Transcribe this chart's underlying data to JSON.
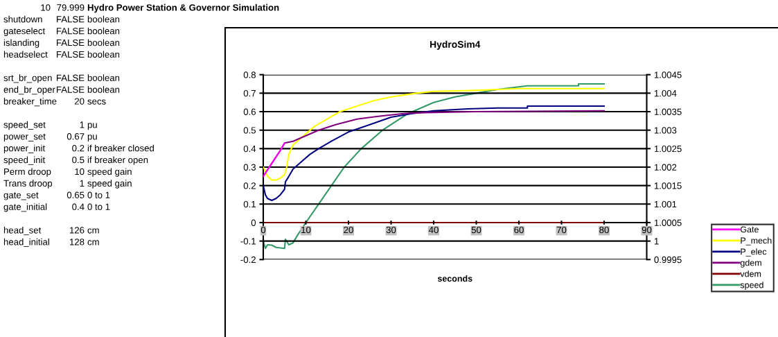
{
  "chart_data": {
    "type": "line",
    "title": "HydroSim4",
    "xlabel": "seconds",
    "xlim": [
      0,
      90
    ],
    "xticks": [
      0,
      10,
      20,
      30,
      40,
      50,
      60,
      70,
      80,
      90
    ],
    "ylim": [
      -0.2,
      0.8
    ],
    "yticks": [
      -0.2,
      -0.1,
      0,
      0.1,
      0.2,
      0.3,
      0.4,
      0.5,
      0.6,
      0.7,
      0.8
    ],
    "y2lim": [
      0.9995,
      1.0045
    ],
    "y2ticks": [
      0.9995,
      1,
      1.0005,
      1.001,
      1.0015,
      1.002,
      1.0025,
      1.003,
      1.0035,
      1.004,
      1.0045
    ],
    "grid": "y",
    "legend": "right",
    "marker": "none",
    "line_style": "solid",
    "series": [
      {
        "name": "Gate",
        "color": "#ff00ff",
        "x": [
          0,
          2,
          4,
          5
        ],
        "values": [
          0.25,
          0.32,
          0.39,
          0.43
        ]
      },
      {
        "name": "P_mech",
        "color": "#ffff00",
        "x": [
          0,
          0.5,
          1,
          2,
          3,
          4,
          5,
          5.5,
          6,
          7,
          8,
          10,
          12,
          15,
          18,
          22,
          26,
          30,
          36,
          40,
          50,
          55,
          60,
          80
        ],
        "values": [
          0.3,
          0.28,
          0.25,
          0.23,
          0.23,
          0.24,
          0.26,
          0.3,
          0.37,
          0.42,
          0.44,
          0.48,
          0.52,
          0.56,
          0.6,
          0.63,
          0.66,
          0.68,
          0.7,
          0.71,
          0.715,
          0.72,
          0.725,
          0.725
        ]
      },
      {
        "name": "P_elec",
        "color": "#000080",
        "x": [
          0,
          0.5,
          1,
          2,
          3,
          4,
          5,
          5.2,
          6,
          7,
          9,
          11,
          13,
          16,
          20,
          25,
          30,
          35,
          40,
          48,
          55,
          62,
          62,
          80
        ],
        "values": [
          0.2,
          0.15,
          0.13,
          0.12,
          0.13,
          0.15,
          0.18,
          0.22,
          0.25,
          0.29,
          0.33,
          0.37,
          0.4,
          0.44,
          0.49,
          0.53,
          0.57,
          0.59,
          0.605,
          0.615,
          0.62,
          0.62,
          0.63,
          0.63
        ]
      },
      {
        "name": "gdem",
        "color": "#800080",
        "x": [
          0,
          2,
          4,
          5,
          7,
          10,
          13,
          17,
          22,
          27,
          33,
          38,
          50,
          80
        ],
        "values": [
          0.25,
          0.32,
          0.39,
          0.43,
          0.44,
          0.47,
          0.5,
          0.53,
          0.56,
          0.575,
          0.59,
          0.595,
          0.6,
          0.605
        ]
      },
      {
        "name": "vdem",
        "color": "#800000",
        "x": [
          0,
          80
        ],
        "values": [
          0,
          0
        ]
      },
      {
        "name": "speed",
        "color": "#339966",
        "axis": "y2",
        "x": [
          0,
          0.5,
          1,
          2,
          3,
          5,
          5.2,
          6,
          7,
          8,
          10,
          13,
          16,
          19,
          23,
          28,
          34,
          40,
          45,
          50,
          55,
          60,
          62,
          74,
          74,
          80
        ],
        "values": [
          1.0,
          0.9998,
          0.9999,
          0.99989,
          0.99983,
          0.9998,
          1.00005,
          0.9999,
          0.99995,
          1.00015,
          1.0005,
          1.001,
          1.0015,
          1.002,
          1.0025,
          1.003,
          1.00345,
          1.00375,
          1.0039,
          1.004,
          1.0041,
          1.00417,
          1.0042,
          1.0042,
          1.00425,
          1.00425
        ]
      }
    ],
    "annotations": [
      "10",
      "79.999",
      "Hydro Power Station & Governor Simulation",
      "shutdown",
      "FALSE",
      "boolean",
      "gateselect",
      "FALSE",
      "boolean",
      "islanding",
      "FALSE",
      "boolean",
      "headselect",
      "FALSE",
      "boolean",
      "srt_br_open",
      "FALSE",
      "boolean",
      "end_br_oper",
      "FALSE",
      "boolean",
      "breaker_time",
      "20",
      "secs",
      "speed_set",
      "1",
      "pu",
      "power_set",
      "0.67",
      "pu",
      "power_init",
      "0.2",
      "if breaker closed",
      "speed_init",
      "0.5",
      "if breaker open",
      "Perm droop",
      "10",
      "speed gain",
      "Trans droop",
      "1",
      "speed gain",
      "gate_set",
      "0.65",
      "0 to 1",
      "gate_initial",
      "0.4",
      "0 to 1",
      "head_set",
      "126",
      "cm",
      "head_initial",
      "128",
      "cm"
    ]
  }
}
